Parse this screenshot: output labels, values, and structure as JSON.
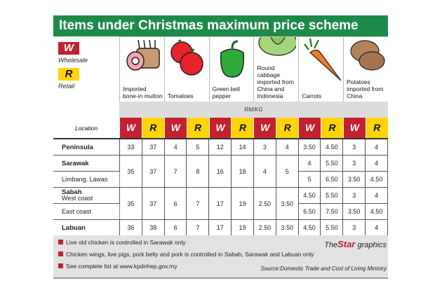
{
  "title": "Items under Christmas maximum price scheme",
  "legend": {
    "w_letter": "W",
    "w_label": "Wholesale",
    "r_letter": "R",
    "r_label": "Retail",
    "w_color": "#c4202f",
    "r_color": "#ffd400"
  },
  "items": [
    {
      "label": "Imported bone-in mutton",
      "icon": "mutton-icon"
    },
    {
      "label": "Tomatoes",
      "icon": "tomato-icon"
    },
    {
      "label": "Green bell pepper",
      "icon": "bell-pepper-icon"
    },
    {
      "label": "Round cabbage imported from China and Indonesia",
      "icon": "cabbage-icon"
    },
    {
      "label": "Carrots",
      "icon": "carrot-icon"
    },
    {
      "label": "Potatoes imported from China",
      "icon": "potato-icon"
    }
  ],
  "unit": "RM/KG",
  "location_label": "Location",
  "chart_data": {
    "type": "table",
    "title": "Items under Christmas maximum price scheme",
    "columns": [
      "W",
      "R",
      "W",
      "R",
      "W",
      "R",
      "W",
      "R",
      "W",
      "R",
      "W",
      "R"
    ],
    "rows": [
      {
        "location": "Peninsula",
        "sub": "",
        "values": [
          "33",
          "37",
          "4",
          "5",
          "12",
          "14",
          "3",
          "4",
          "3.50",
          "4.50",
          "3",
          "4"
        ]
      },
      {
        "location": "Sarawak",
        "sub": "",
        "values": [
          "35",
          "37",
          "7",
          "8",
          "16",
          "18",
          "4",
          "5",
          "4",
          "5.50",
          "3",
          "4"
        ]
      },
      {
        "location": "",
        "sub": "Limbang, Lawas",
        "values": [
          null,
          null,
          null,
          null,
          null,
          null,
          null,
          null,
          "5",
          "6.50",
          "3.50",
          "4.50"
        ]
      },
      {
        "location": "Sabah",
        "sub": "West coast",
        "values": [
          "35",
          "37",
          "6",
          "7",
          "17",
          "19",
          "2.50",
          "3.50",
          "4.50",
          "5.50",
          "3",
          "4"
        ]
      },
      {
        "location": "",
        "sub": "East coast",
        "values": [
          null,
          null,
          null,
          null,
          null,
          null,
          null,
          null,
          "6.50",
          "7.50",
          "3.50",
          "4.50"
        ]
      },
      {
        "location": "Labuan",
        "sub": "",
        "values": [
          "36",
          "38",
          "6",
          "7",
          "17",
          "19",
          "2.50",
          "3.50",
          "4.50",
          "5.50",
          "3",
          "4"
        ]
      }
    ]
  },
  "notes": [
    "Live old chicken is controlled in Sarawak only",
    "Chicken wings, live pigs, pork belly and pork is controlled in Sabah, Sarawak and Labuan only",
    "See complete list at www.kpdnhep.gov.my"
  ],
  "brand": {
    "the": "The",
    "star": "Star",
    "graphics": " graphics"
  },
  "source": "Source:Domestic Trade and Cost of Living Ministry"
}
